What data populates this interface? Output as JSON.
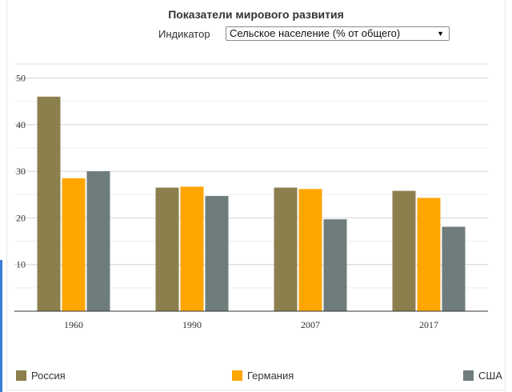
{
  "header": {
    "title": "Показатели мирового развития",
    "indicator_label": "Индикатор",
    "indicator_value": "Сельское население (% от общего)"
  },
  "colors": {
    "russia": "#8c7f4e",
    "germany": "#ffa500",
    "usa": "#6e7c7c",
    "grid": "#dddddd"
  },
  "chart_data": {
    "type": "bar",
    "categories": [
      "1960",
      "1990",
      "2007",
      "2017"
    ],
    "series": [
      {
        "name": "Россия",
        "values": [
          46,
          26.5,
          26.5,
          25.8
        ]
      },
      {
        "name": "Германия",
        "values": [
          28.5,
          26.7,
          26.2,
          24.3
        ]
      },
      {
        "name": "США",
        "values": [
          30,
          24.7,
          19.7,
          18.1
        ]
      }
    ],
    "yticks": [
      10,
      20,
      30,
      40,
      50
    ],
    "ylim": [
      0,
      50
    ],
    "legend": "bottom",
    "grid": true
  }
}
